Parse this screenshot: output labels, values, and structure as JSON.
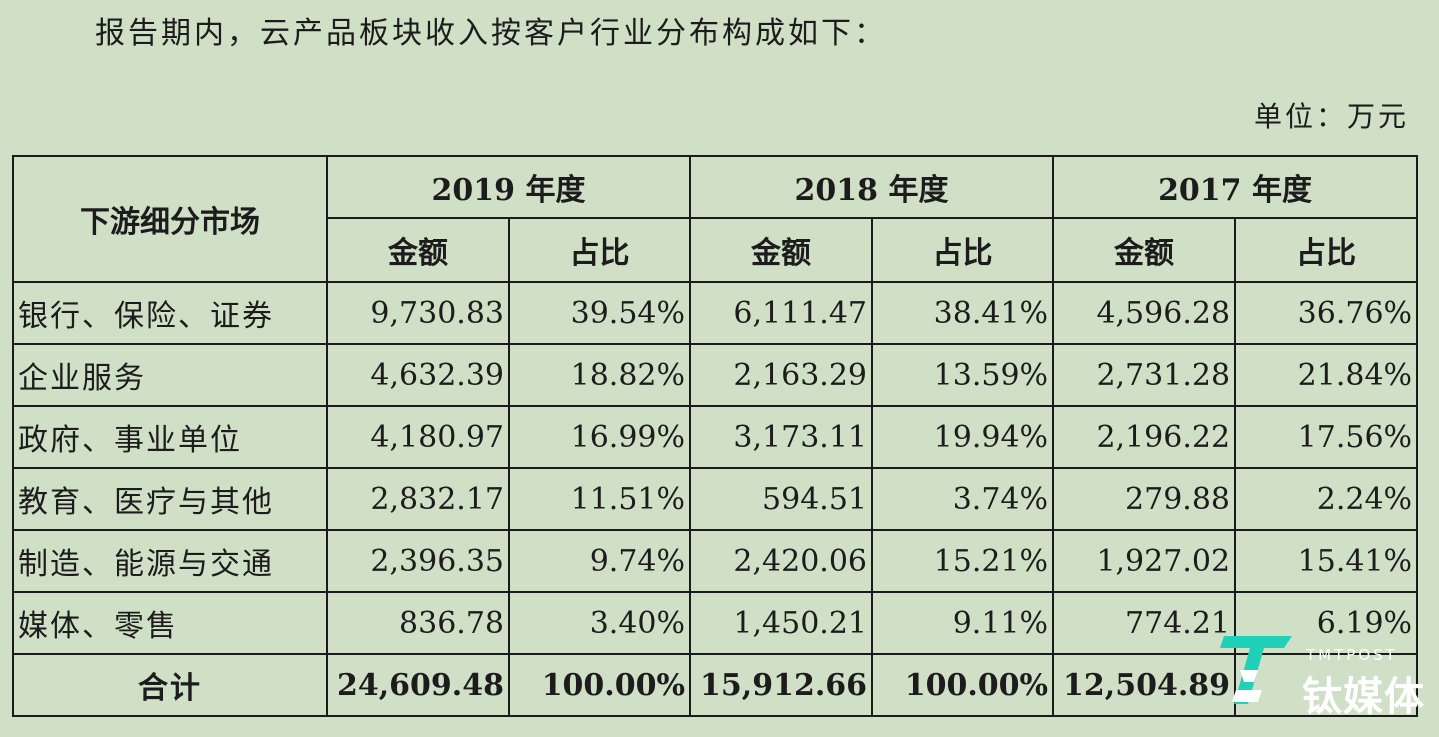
{
  "intro_text": "报告期内，云产品板块收入按客户行业分布构成如下：",
  "unit_text": "单位：万元",
  "table": {
    "corner_header": "下游细分市场",
    "years": [
      "2019 年度",
      "2018 年度",
      "2017 年度"
    ],
    "sub_headers": [
      "金额",
      "占比",
      "金额",
      "占比",
      "金额",
      "占比"
    ],
    "rows": [
      {
        "category": "银行、保险、证券",
        "values": [
          "9,730.83",
          "39.54%",
          "6,111.47",
          "38.41%",
          "4,596.28",
          "36.76%"
        ]
      },
      {
        "category": "企业服务",
        "values": [
          "4,632.39",
          "18.82%",
          "2,163.29",
          "13.59%",
          "2,731.28",
          "21.84%"
        ]
      },
      {
        "category": "政府、事业单位",
        "values": [
          "4,180.97",
          "16.99%",
          "3,173.11",
          "19.94%",
          "2,196.22",
          "17.56%"
        ]
      },
      {
        "category": "教育、医疗与其他",
        "values": [
          "2,832.17",
          "11.51%",
          "594.51",
          "3.74%",
          "279.88",
          "2.24%"
        ]
      },
      {
        "category": "制造、能源与交通",
        "values": [
          "2,396.35",
          "9.74%",
          "2,420.06",
          "15.21%",
          "1,927.02",
          "15.41%"
        ]
      },
      {
        "category": "媒体、零售",
        "values": [
          "836.78",
          "3.40%",
          "1,450.21",
          "9.11%",
          "774.21",
          "6.19%"
        ]
      }
    ],
    "total": {
      "category": "合计",
      "values": [
        "24,609.48",
        "100.00%",
        "15,912.66",
        "100.00%",
        "12,504.89",
        ""
      ]
    }
  },
  "watermark": {
    "brand": "TMTPOST",
    "name": "钛媒体",
    "accent_color": "#1fd1b8",
    "icon": "tmtpost-logo-icon"
  },
  "colors": {
    "background": "#cfe0c7",
    "border": "#1a1a1a",
    "text": "#1c1c1c"
  }
}
